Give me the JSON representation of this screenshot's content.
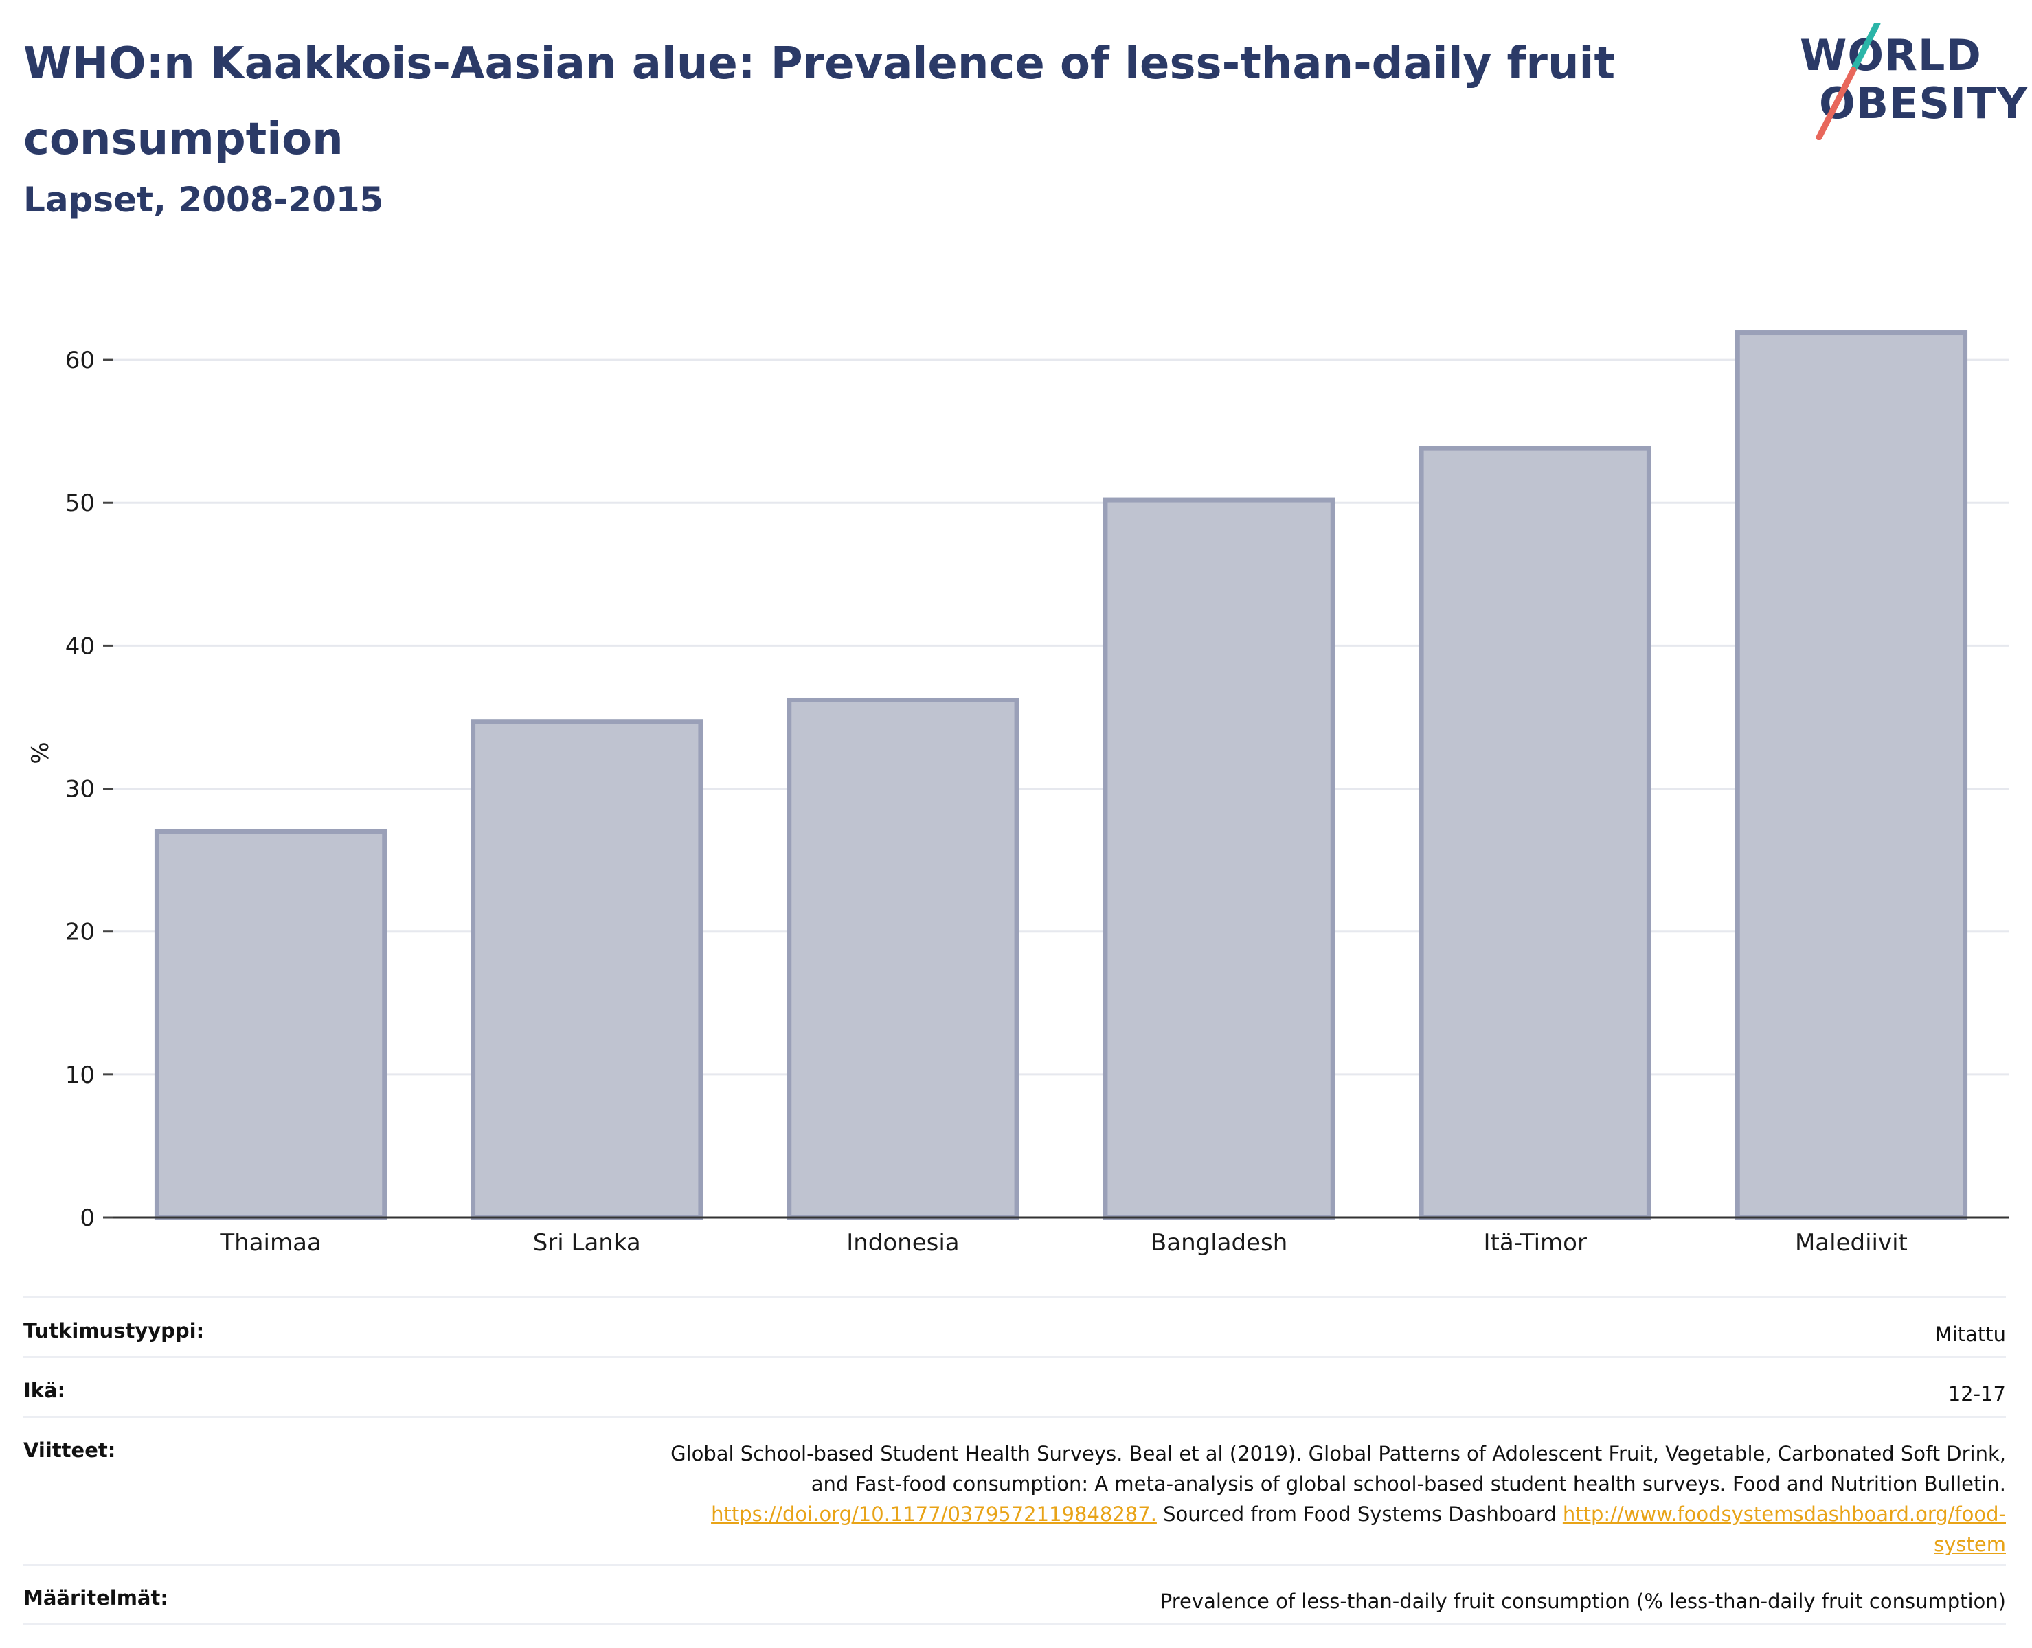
{
  "header": {
    "title": "WHO:n Kaakkois-Aasian alue: Prevalence of less-than-daily fruit consumption",
    "subtitle": "Lapset, 2008-2015"
  },
  "logo": {
    "line1": "WORLD",
    "line2": "OBESITY"
  },
  "colors": {
    "bar_fill": "#bfc3d0",
    "bar_stroke": "#9aa0b8",
    "title": "#2b3a67",
    "link": "#e8a317",
    "accent_teal": "#2bb5a8",
    "accent_coral": "#e8675b"
  },
  "chart_data": {
    "type": "bar",
    "categories": [
      "Thaimaa",
      "Sri Lanka",
      "Indonesia",
      "Bangladesh",
      "Itä-Timor",
      "Malediivit"
    ],
    "values": [
      27.0,
      34.7,
      36.2,
      50.2,
      53.8,
      61.9
    ],
    "ylabel": "%",
    "ylim": [
      0,
      65
    ],
    "yticks": [
      0,
      10,
      20,
      30,
      40,
      50,
      60
    ],
    "grid": true
  },
  "meta": {
    "study_type": {
      "label": "Tutkimustyyppi:",
      "value": "Mitattu"
    },
    "age": {
      "label": "Ikä:",
      "value": "12-17"
    },
    "references": {
      "label": "Viitteet:",
      "line1": "Global School-based Student Health Surveys. Beal et al (2019). Global Patterns of Adolescent Fruit, Vegetable, Carbonated Soft Drink,",
      "line2": "and Fast-food consumption: A meta-analysis of global school-based student health surveys. Food and Nutrition Bulletin.",
      "link1": "https://doi.org/10.1177/0379572119848287.",
      "middle": " Sourced from Food Systems Dashboard ",
      "link2a": "http://www.foodsystemsdashboard.org/food-",
      "link2b": "system"
    },
    "definitions": {
      "label": "Määritelmät:",
      "value": "Prevalence of less-than-daily fruit consumption (% less-than-daily fruit consumption)"
    }
  }
}
